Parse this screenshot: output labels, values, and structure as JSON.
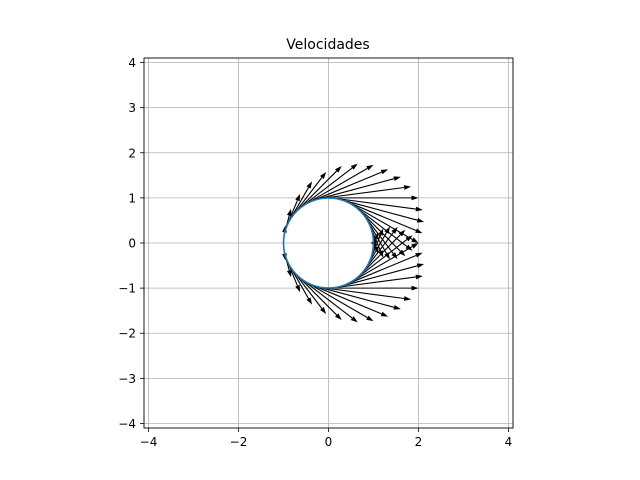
{
  "chart_data": {
    "type": "quiver",
    "title": "Velocidades",
    "xlabel": "",
    "ylabel": "",
    "xlim": [
      -4.1,
      4.1
    ],
    "ylim": [
      -4.1,
      4.1
    ],
    "xticks": [
      -4,
      -2,
      0,
      2,
      4
    ],
    "yticks": [
      -4,
      -3,
      -2,
      -1,
      0,
      1,
      2,
      3,
      4
    ],
    "xtick_labels": [
      "−4",
      "−2",
      "0",
      "2",
      "4"
    ],
    "ytick_labels": [
      "−4",
      "−3",
      "−2",
      "−1",
      "0",
      "1",
      "2",
      "3",
      "4"
    ],
    "grid": true,
    "aspect": "equal",
    "circle": {
      "center": [
        0,
        0
      ],
      "radius": 1,
      "color": "#1f77b4"
    },
    "flow": {
      "description_free_stream_U": 1,
      "cylinder_radius": 1,
      "points": 48,
      "color": "#000000"
    }
  }
}
